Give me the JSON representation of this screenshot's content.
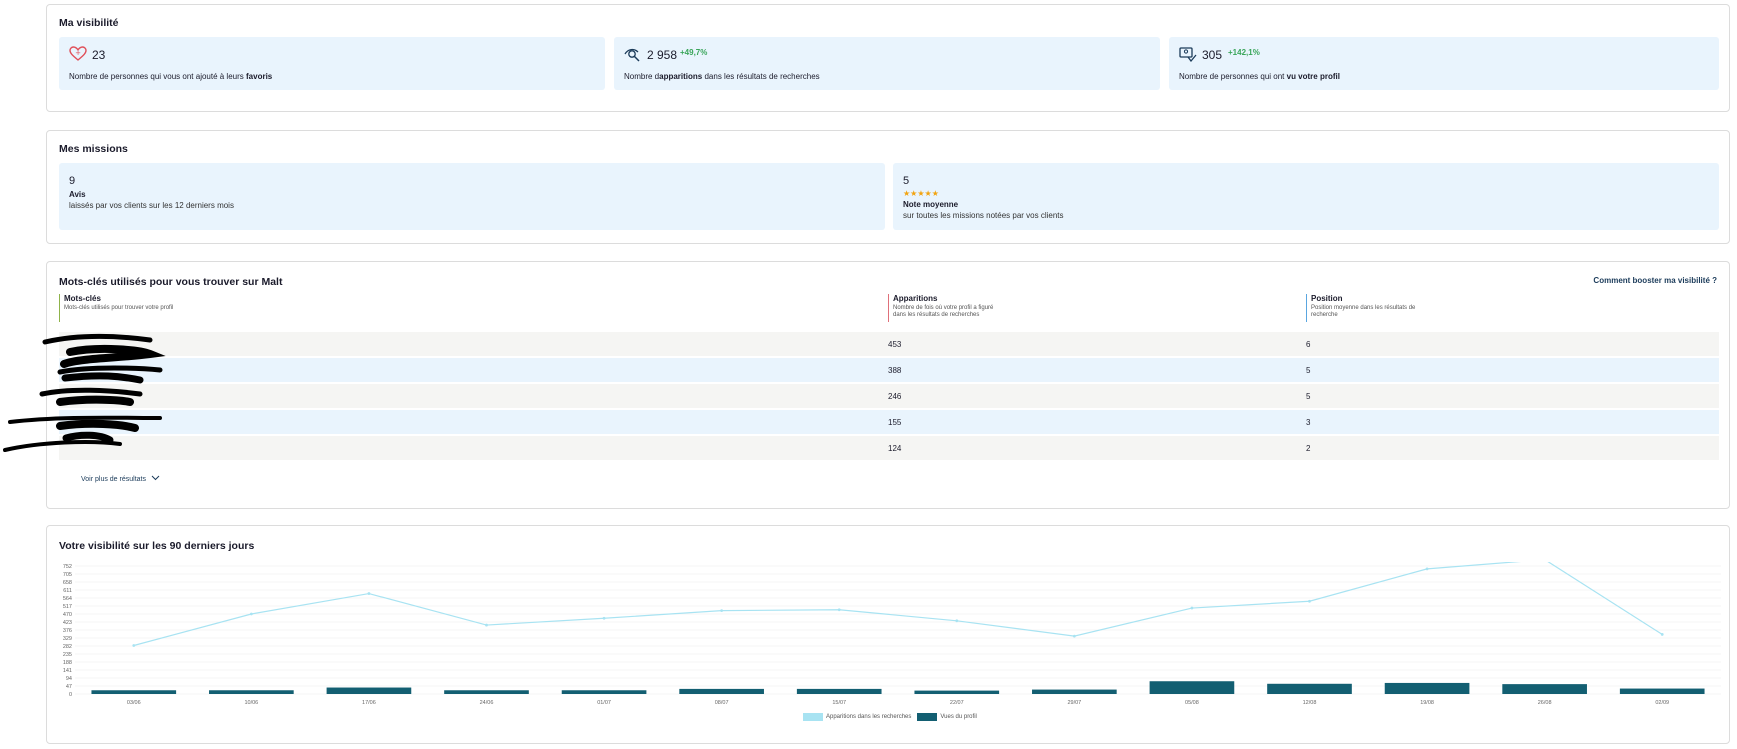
{
  "visibility": {
    "title": "Ma visibilité",
    "stats": [
      {
        "icon": "heart-icon",
        "value": "23",
        "delta": "",
        "desc_pre": "Nombre de personnes qui vous ont ajouté à leurs ",
        "desc_bold": "favoris",
        "desc_post": ""
      },
      {
        "icon": "eye-search-icon",
        "value": "2 958",
        "delta": "+49,7%",
        "desc_pre": "Nombre d",
        "desc_bold": "apparitions",
        "desc_post": " dans les résultats de recherches"
      },
      {
        "icon": "profile-view-icon",
        "value": "305",
        "delta": "+142,1%",
        "desc_pre": "Nombre de personnes qui ont ",
        "desc_bold": "vu votre profil",
        "desc_post": ""
      }
    ]
  },
  "missions": {
    "title": "Mes missions",
    "reviews": {
      "value": "9",
      "label": "Avis",
      "desc": "laissés par vos clients sur les 12 derniers mois"
    },
    "rating": {
      "value": "5",
      "stars": "★★★★★",
      "label": "Note moyenne",
      "desc": "sur toutes les missions notées par vos clients"
    }
  },
  "keywords": {
    "title": "Mots-clés utilisés pour vous trouver sur Malt",
    "booster_link": "Comment booster ma visibilité ?",
    "columns": [
      {
        "title": "Mots-clés",
        "subtitle": "Mots-clés utilisés pour trouver votre profil",
        "color": "#8fb34a"
      },
      {
        "title": "Apparitions",
        "subtitle": "Nombre de fois où votre profil a figuré dans les résultats de recherches",
        "color": "#e0707a"
      },
      {
        "title": "Position",
        "subtitle": "Position moyenne dans les résultats de recherche",
        "color": "#5aa6e0"
      }
    ],
    "rows": [
      {
        "keyword": "",
        "appearances": "453",
        "position": "6"
      },
      {
        "keyword": "",
        "appearances": "388",
        "position": "5"
      },
      {
        "keyword": "",
        "appearances": "246",
        "position": "5"
      },
      {
        "keyword": "",
        "appearances": "155",
        "position": "3"
      },
      {
        "keyword": "",
        "appearances": "124",
        "position": "2"
      }
    ],
    "more_label": "Voir plus de résultats"
  },
  "chart_section": {
    "title": "Votre visibilité sur les 90 derniers jours"
  },
  "chart_data": {
    "type": "bar",
    "title": "Votre visibilité sur les 90 derniers jours",
    "categories": [
      "03/06",
      "10/06",
      "17/06",
      "24/06",
      "01/07",
      "08/07",
      "15/07",
      "22/07",
      "29/07",
      "05/08",
      "12/08",
      "19/08",
      "26/08",
      "02/09"
    ],
    "y_ticks": [
      "752",
      "705",
      "658",
      "611",
      "564",
      "517",
      "470",
      "423",
      "376",
      "329",
      "282",
      "235",
      "188",
      "141",
      "94",
      "47",
      "0"
    ],
    "ylim": [
      0,
      752
    ],
    "grid": true,
    "legend_position": "bottom",
    "series": [
      {
        "name": "Apparitions dans les recherches",
        "type": "line",
        "color": "#a8e3f2",
        "values": [
          285,
          470,
          590,
          405,
          445,
          490,
          495,
          430,
          340,
          505,
          545,
          735,
          790,
          350
        ]
      },
      {
        "name": "Vues du profil",
        "type": "bar",
        "color": "#135f72",
        "values": [
          22,
          22,
          38,
          22,
          22,
          30,
          30,
          20,
          26,
          75,
          60,
          65,
          58,
          32
        ]
      }
    ]
  }
}
